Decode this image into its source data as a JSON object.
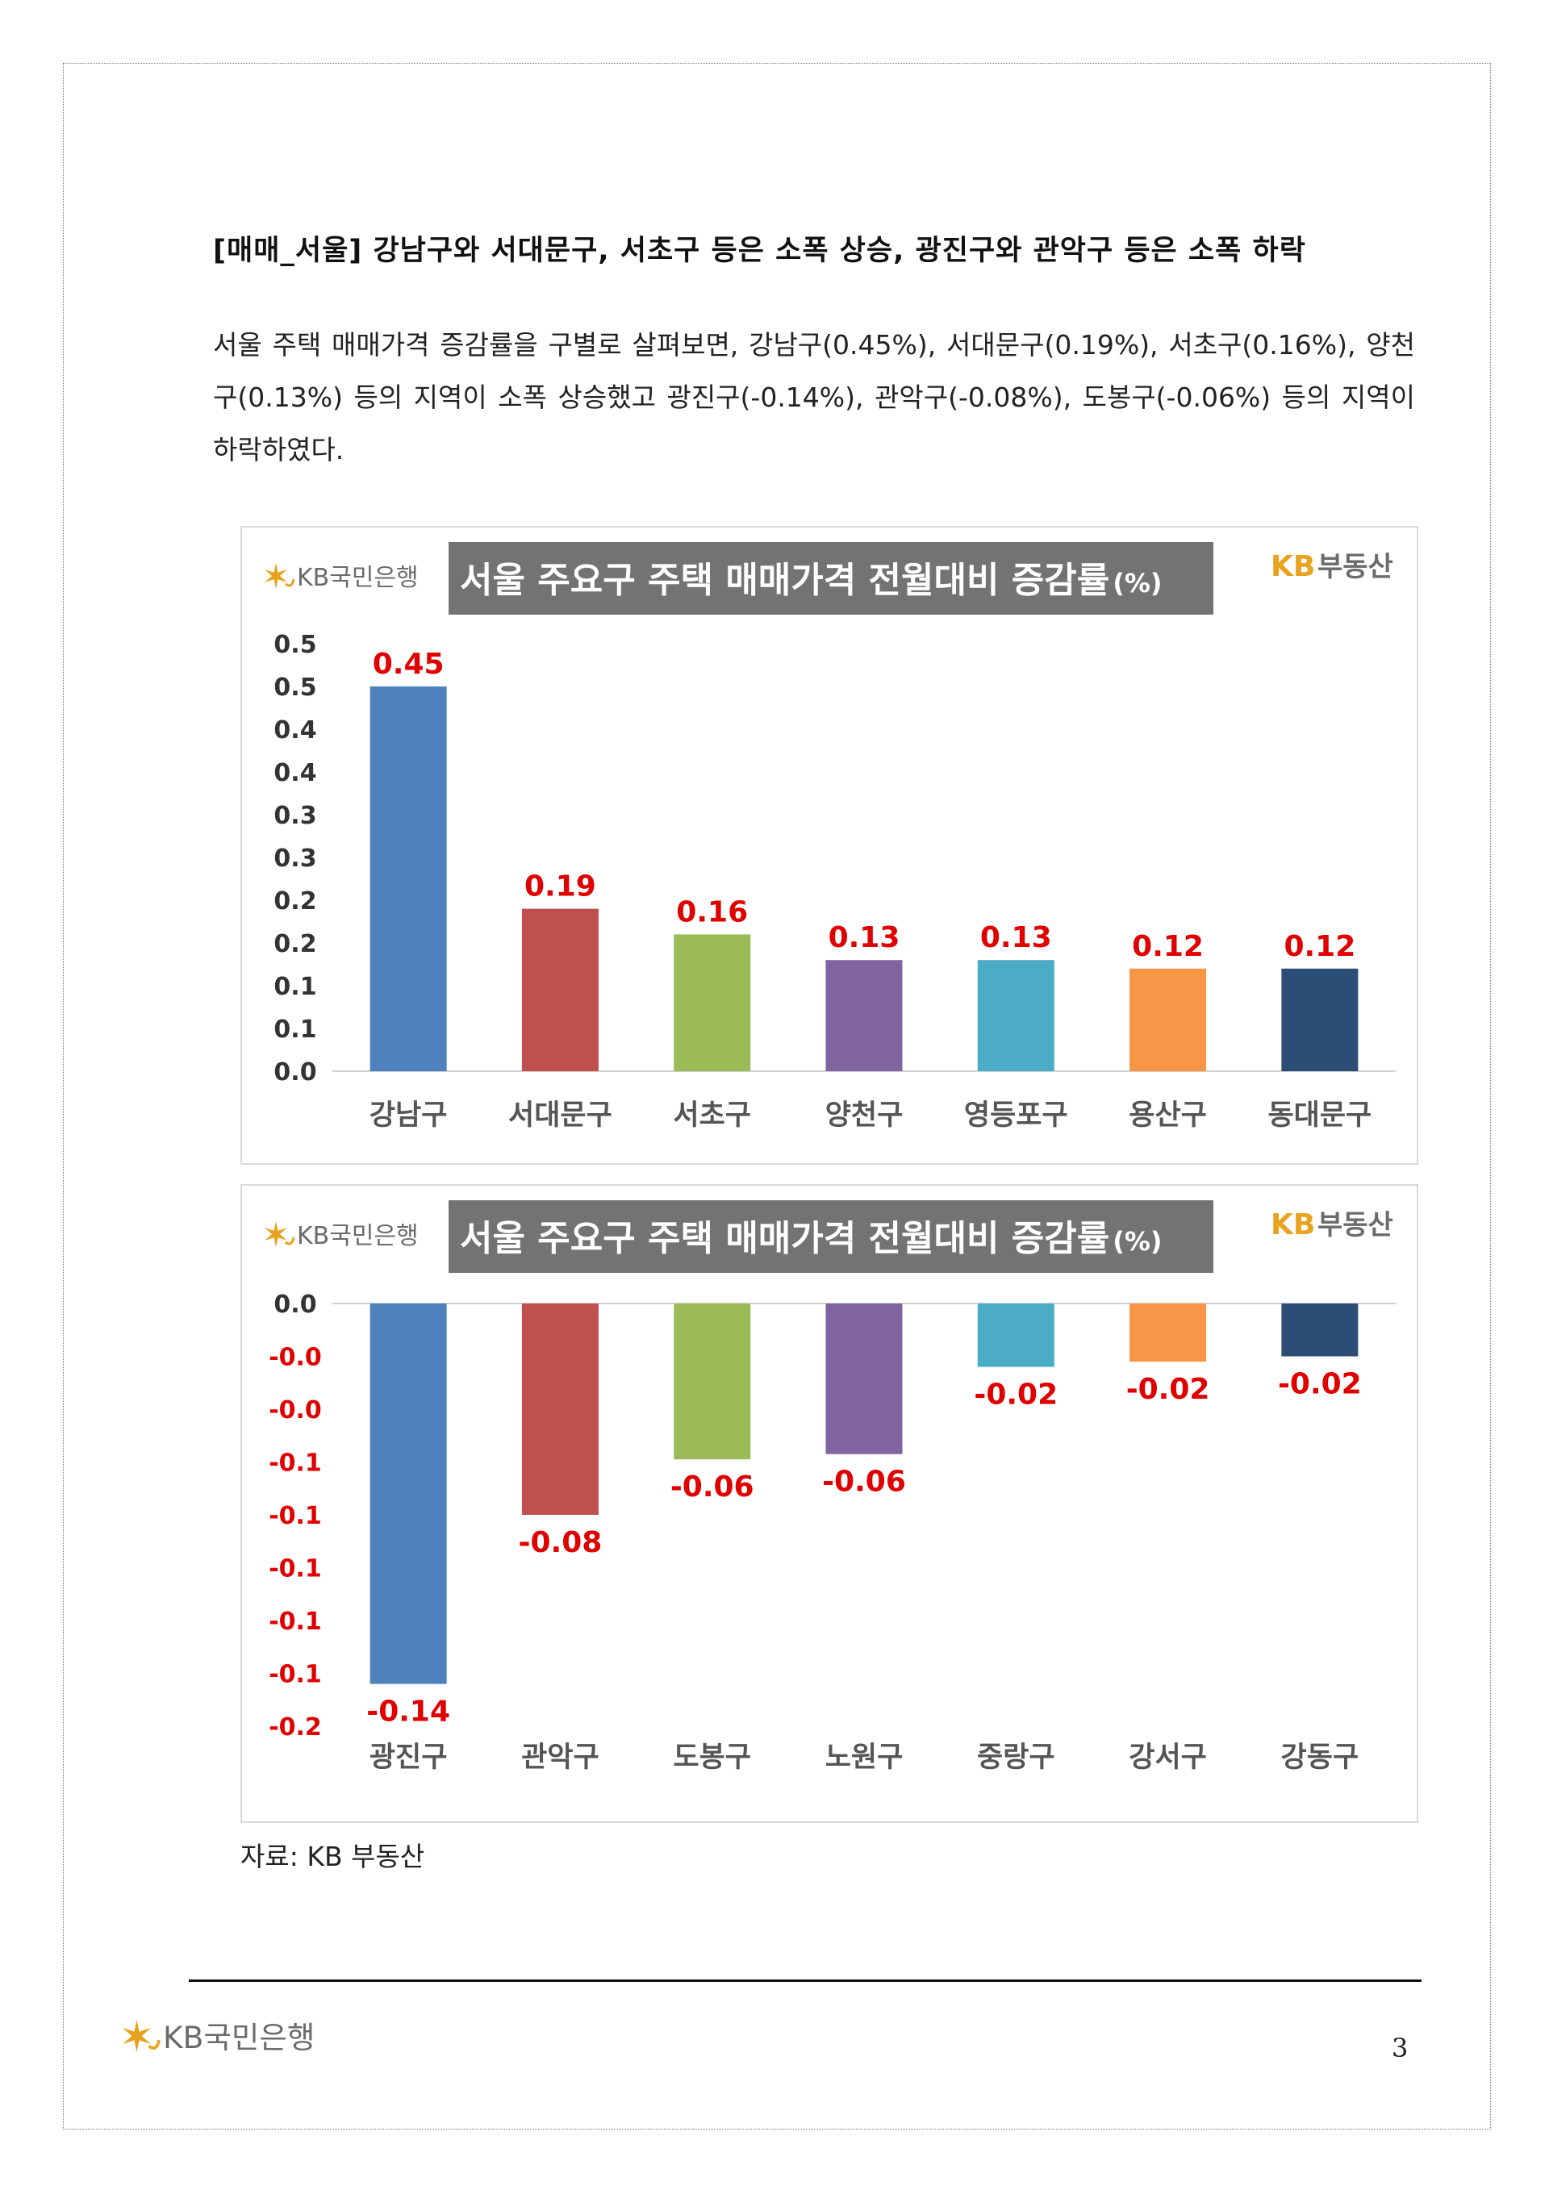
{
  "heading": "[매매_서울] 강남구와 서대문구, 서초구 등은 소폭 상승, 광진구와 관악구 등은 소폭 하락",
  "paragraph": "서울 주택 매매가격 증감률을 구별로 살펴보면, 강남구(0.45%), 서대문구(0.19%), 서초구(0.16%), 양천구(0.13%) 등의 지역이 소폭 상승했고 광진구(-0.14%), 관악구(-0.08%), 도봉구(-0.06%) 등의 지역이 하락하였다.",
  "brand": {
    "bank_logo": "KB국민은행",
    "realestate_logo_kb": "KB",
    "realestate_logo_text": "부동산"
  },
  "source": "자료: KB 부동산",
  "page_number": "3",
  "colors": {
    "title_bg": "#737373",
    "value_label": "#e00000",
    "brand_gold": "#e8a21d",
    "brand_gray": "#6b6b6b"
  },
  "chart_data": [
    {
      "type": "bar",
      "title": "서울 주요구 주택 매매가격 전월대비 증감률",
      "title_unit": "(%)",
      "categories": [
        "강남구",
        "서대문구",
        "서초구",
        "양천구",
        "영등포구",
        "용산구",
        "동대문구"
      ],
      "values": [
        0.45,
        0.19,
        0.16,
        0.13,
        0.13,
        0.12,
        0.12
      ],
      "value_labels": [
        "0.45",
        "0.19",
        "0.16",
        "0.13",
        "0.13",
        "0.12",
        "0.12"
      ],
      "bar_colors": [
        "#4f81bd",
        "#c0504d",
        "#9bbb59",
        "#8064a2",
        "#4bacc6",
        "#f79646",
        "#2c4d75"
      ],
      "y_ticks": [
        0.5,
        0.45,
        0.4,
        0.35,
        0.3,
        0.25,
        0.2,
        0.15,
        0.1,
        0.05,
        0.0
      ],
      "y_tick_labels": [
        "0.5",
        "0.5",
        "0.4",
        "0.4",
        "0.3",
        "0.3",
        "0.2",
        "0.2",
        "0.1",
        "0.1",
        "0.0"
      ],
      "ylim": [
        0,
        0.5
      ],
      "grid": false
    },
    {
      "type": "bar",
      "title": "서울 주요구 주택 매매가격 전월대비 증감률",
      "title_unit": "(%)",
      "categories": [
        "광진구",
        "관악구",
        "도봉구",
        "노원구",
        "중랑구",
        "강서구",
        "강동구"
      ],
      "values": [
        -0.144,
        -0.08,
        -0.059,
        -0.057,
        -0.024,
        -0.022,
        -0.02
      ],
      "value_labels": [
        "-0.14",
        "-0.08",
        "-0.06",
        "-0.06",
        "-0.02",
        "-0.02",
        "-0.02"
      ],
      "bar_colors": [
        "#4f81bd",
        "#c0504d",
        "#9bbb59",
        "#8064a2",
        "#4bacc6",
        "#f79646",
        "#2c4d75"
      ],
      "y_ticks": [
        0.0,
        -0.02,
        -0.04,
        -0.06,
        -0.08,
        -0.1,
        -0.12,
        -0.14,
        -0.16
      ],
      "y_tick_labels": [
        "0.0",
        "-0.0",
        "-0.0",
        "-0.1",
        "-0.1",
        "-0.1",
        "-0.1",
        "-0.1",
        "-0.2"
      ],
      "ylim": [
        -0.16,
        0
      ],
      "grid": false
    }
  ]
}
